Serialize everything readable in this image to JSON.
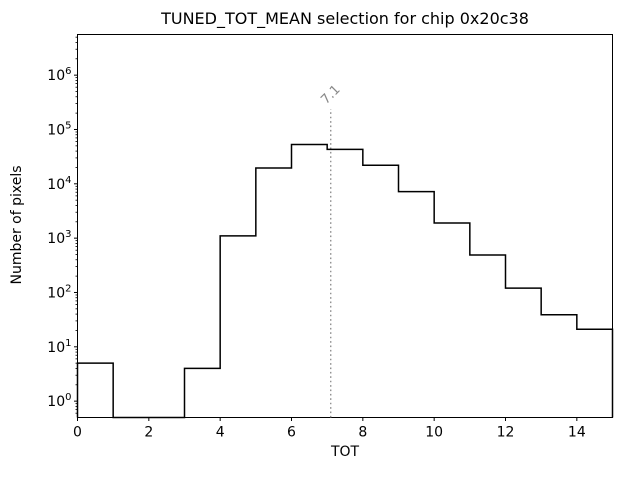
{
  "figure": {
    "background": "#ffffff",
    "text_color": "#000000"
  },
  "chart_data": {
    "type": "histogram-step",
    "title": "TUNED_TOT_MEAN selection for chip 0x20c38",
    "xlabel": "TOT",
    "ylabel": "Number of pixels",
    "yscale": "log",
    "grid": false,
    "legend": null,
    "bin_edges": [
      0,
      1,
      2,
      3,
      4,
      5,
      6,
      7,
      8,
      9,
      10,
      11,
      12,
      13,
      14,
      15
    ],
    "counts": [
      5,
      0,
      0,
      4,
      1100,
      19500,
      53000,
      43000,
      22000,
      7200,
      1900,
      490,
      120,
      39,
      21
    ],
    "xlim": [
      0,
      15
    ],
    "ylim": [
      0.5,
      5600000
    ],
    "x_ticks": [
      0,
      2,
      4,
      6,
      8,
      10,
      12,
      14
    ],
    "y_tick_exponents": [
      0,
      1,
      2,
      3,
      4,
      5,
      6
    ],
    "line_color": "#000000",
    "line_width": 1.5,
    "annotation": {
      "label": "7.1",
      "x": 7.1,
      "color": "#888888",
      "line_style": "dotted",
      "line_top_fraction": 0.805,
      "label_rotation_deg": -45
    }
  }
}
